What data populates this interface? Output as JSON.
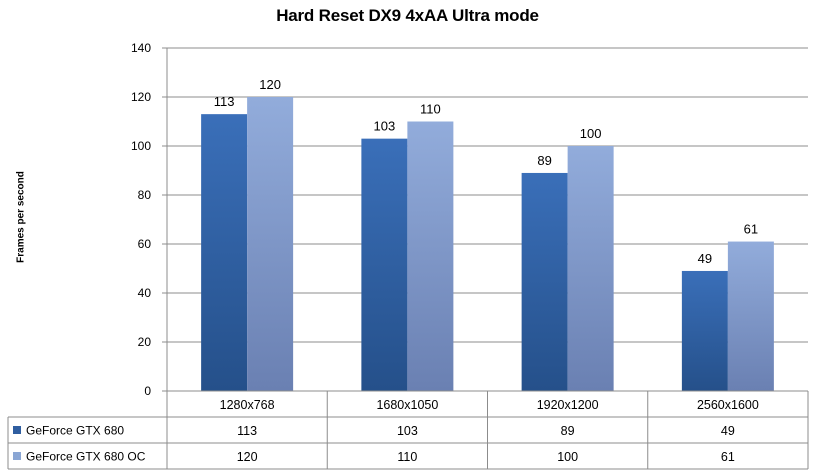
{
  "chart_data": {
    "type": "bar",
    "title": "Hard Reset DX9 4xAA Ultra mode",
    "ylabel": "Frames per second",
    "xlabel": "",
    "categories": [
      "1280x768",
      "1680x1050",
      "1920x1200",
      "2560x1600"
    ],
    "series": [
      {
        "name": "GeForce GTX 680",
        "values": [
          113,
          103,
          89,
          49
        ],
        "color": "#2f5ea0"
      },
      {
        "name": "GeForce GTX 680 OC",
        "values": [
          120,
          110,
          100,
          61
        ],
        "color": "#8aa6d4"
      }
    ],
    "ylim": [
      0,
      140
    ],
    "yticks": [
      0,
      20,
      40,
      60,
      80,
      100,
      120,
      140
    ],
    "grid": true,
    "data_table": true,
    "legend": "in data table"
  }
}
